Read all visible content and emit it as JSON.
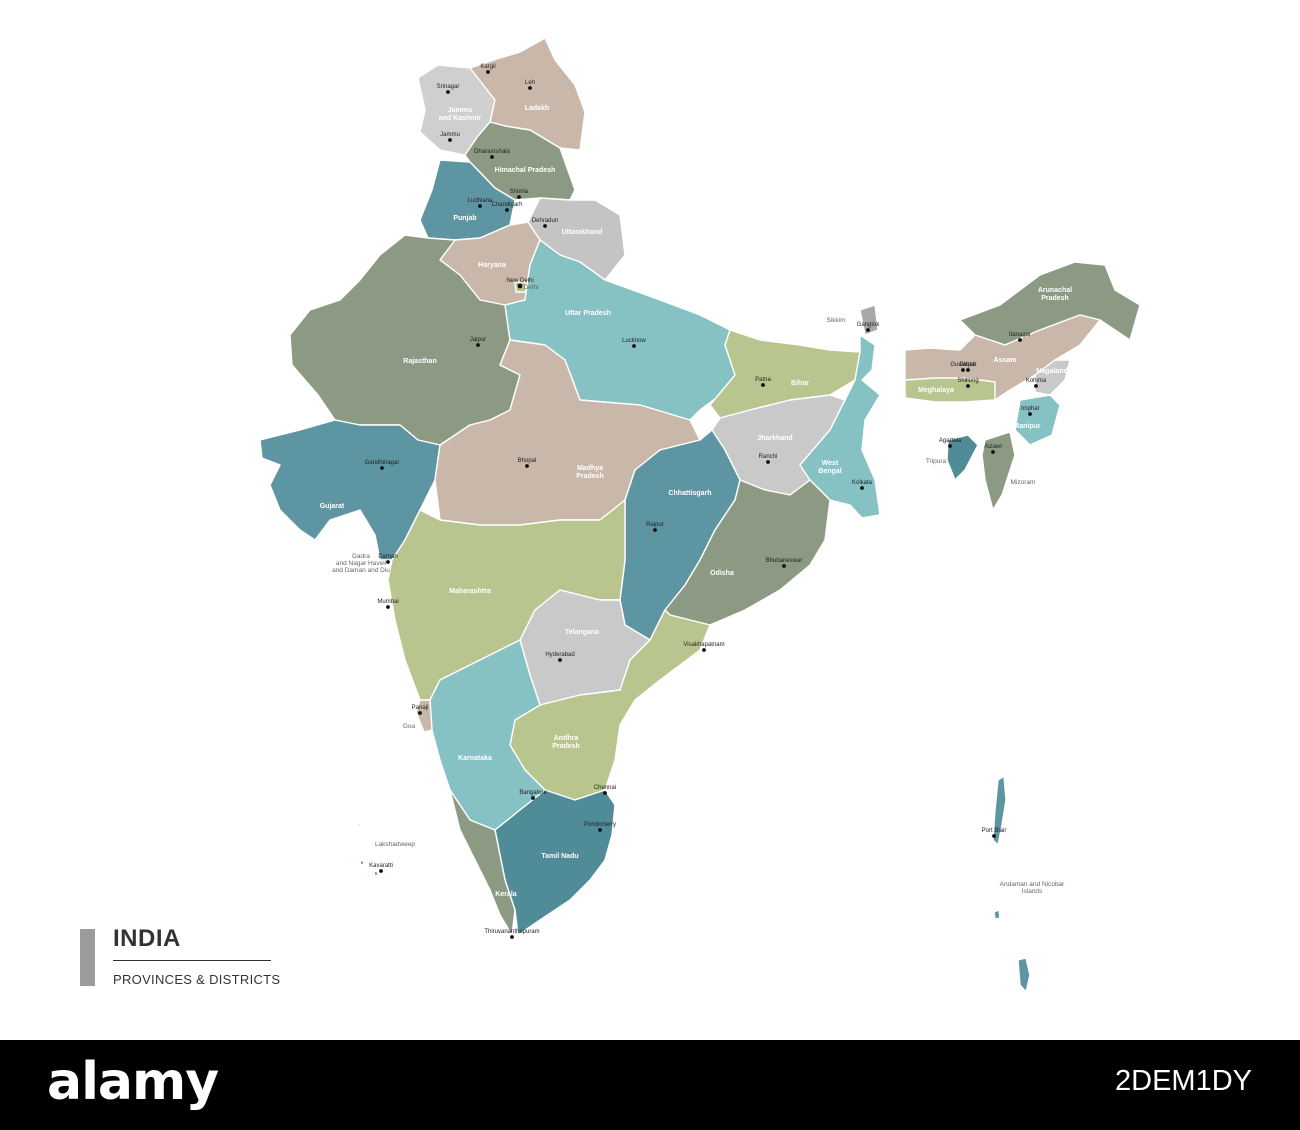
{
  "legend": {
    "title": "INDIA",
    "subtitle": "PROVINCES & DISTRICTS"
  },
  "colors": {
    "olive": "#8d9a83",
    "taupe": "#c9b8a9",
    "teal": "#5d96a2",
    "light_teal": "#86c1c4",
    "sage": "#b9c58e",
    "grey": "#c9c9c9",
    "mid_grey": "#a8aa98",
    "dark_teal": "#4f8c98"
  },
  "states": [
    {
      "id": "jammu-kashmir",
      "name": "Jammu\nand Kashmir",
      "color": "#cfcfcf"
    },
    {
      "id": "ladakh",
      "name": "Ladakh",
      "color": "#c9b8a9"
    },
    {
      "id": "himachal",
      "name": "Himachal Pradesh",
      "color": "#8d9a83"
    },
    {
      "id": "punjab",
      "name": "Punjab",
      "color": "#5d96a2"
    },
    {
      "id": "uttarakhand",
      "name": "Uttarakhand",
      "color": "#c4c4c4"
    },
    {
      "id": "haryana",
      "name": "Haryana",
      "color": "#c9b8a9"
    },
    {
      "id": "rajasthan",
      "name": "Rajasthan",
      "color": "#8d9a83"
    },
    {
      "id": "uttar-pradesh",
      "name": "Uttar Pradesh",
      "color": "#86c1c4"
    },
    {
      "id": "bihar",
      "name": "Bihar",
      "color": "#b9c58e"
    },
    {
      "id": "sikkim",
      "name": "",
      "color": "#a8a8a8"
    },
    {
      "id": "arunachal",
      "name": "Arunachal\nPradesh",
      "color": "#8d9a83"
    },
    {
      "id": "assam",
      "name": "Assam",
      "color": "#c9b8a9"
    },
    {
      "id": "nagaland",
      "name": "Nagaland",
      "color": "#c9c9c9"
    },
    {
      "id": "meghalaya",
      "name": "Meghalaya",
      "color": "#b9c58e"
    },
    {
      "id": "manipur",
      "name": "Manipur",
      "color": "#86c1c4"
    },
    {
      "id": "mizoram",
      "name": "",
      "color": "#8d9a83"
    },
    {
      "id": "tripura",
      "name": "",
      "color": "#4f8c98"
    },
    {
      "id": "gujarat",
      "name": "Gujarat",
      "color": "#5d96a2"
    },
    {
      "id": "madhya-pradesh",
      "name": "Madhya\nPradesh",
      "color": "#c9b8a9"
    },
    {
      "id": "jharkhand",
      "name": "Jharkhand",
      "color": "#c9c9c9"
    },
    {
      "id": "west-bengal",
      "name": "West\nBengal",
      "color": "#86c1c4"
    },
    {
      "id": "chhattisgarh",
      "name": "Chhattisgarh",
      "color": "#5d96a2"
    },
    {
      "id": "odisha",
      "name": "Odisha",
      "color": "#8d9a83"
    },
    {
      "id": "maharashtra",
      "name": "Maharashtra",
      "color": "#b9c58e"
    },
    {
      "id": "telangana",
      "name": "Telangana",
      "color": "#c9c9c9"
    },
    {
      "id": "andhra-pradesh",
      "name": "Andhra\nPradesh",
      "color": "#b9c58e"
    },
    {
      "id": "karnataka",
      "name": "Karnataka",
      "color": "#86c1c4"
    },
    {
      "id": "goa",
      "name": "",
      "color": "#c9b8a9"
    },
    {
      "id": "tamil-nadu",
      "name": "Tamil Nadu",
      "color": "#4f8c98"
    },
    {
      "id": "kerala",
      "name": "Kerala",
      "color": "#8d9a83"
    },
    {
      "id": "andaman",
      "name": "",
      "color": "#5d96a2"
    },
    {
      "id": "lakshadweep",
      "name": "",
      "color": "#5d96a2"
    },
    {
      "id": "delhi",
      "name": "",
      "color": "#b9c58e"
    }
  ],
  "cities": [
    {
      "name": "Kargil"
    },
    {
      "name": "Leh"
    },
    {
      "name": "Srinagar"
    },
    {
      "name": "Jammu"
    },
    {
      "name": "Dharamshala"
    },
    {
      "name": "Shimla"
    },
    {
      "name": "Ludhiana"
    },
    {
      "name": "Chandigarh"
    },
    {
      "name": "Dehradun"
    },
    {
      "name": "New Delhi"
    },
    {
      "name": "Jaipur"
    },
    {
      "name": "Lucknow"
    },
    {
      "name": "Patna"
    },
    {
      "name": "Gangtok"
    },
    {
      "name": "Itanagar"
    },
    {
      "name": "Guwahati"
    },
    {
      "name": "Dispur"
    },
    {
      "name": "Shillong"
    },
    {
      "name": "Kohima"
    },
    {
      "name": "Imphal"
    },
    {
      "name": "Agartala"
    },
    {
      "name": "Aizawl"
    },
    {
      "name": "Gandhinagar"
    },
    {
      "name": "Bhopal"
    },
    {
      "name": "Ranchi"
    },
    {
      "name": "Kolkata"
    },
    {
      "name": "Raipur"
    },
    {
      "name": "Bhubaneswar"
    },
    {
      "name": "Daman"
    },
    {
      "name": "Mumbai"
    },
    {
      "name": "Hyderabad"
    },
    {
      "name": "Visakhapatnam"
    },
    {
      "name": "Panaji"
    },
    {
      "name": "Bangalore"
    },
    {
      "name": "Chennai"
    },
    {
      "name": "Pondicherry"
    },
    {
      "name": "Thiruvananthapuram"
    },
    {
      "name": "Port Blair"
    },
    {
      "name": "Kavaratti"
    }
  ],
  "outside_labels": [
    {
      "text": "Sikkim"
    },
    {
      "text": "Tripura"
    },
    {
      "text": "Mizoram"
    },
    {
      "text": "Delhi"
    },
    {
      "text": "Goa"
    },
    {
      "text": "Lakshadweep"
    },
    {
      "text": "Dadra\nand Nagar Haveli\nand Daman and Diu"
    },
    {
      "text": "Andaman and Nicobar\nIslands"
    }
  ],
  "watermark": {
    "logo": "alamy",
    "code": "2DEM1DY"
  }
}
